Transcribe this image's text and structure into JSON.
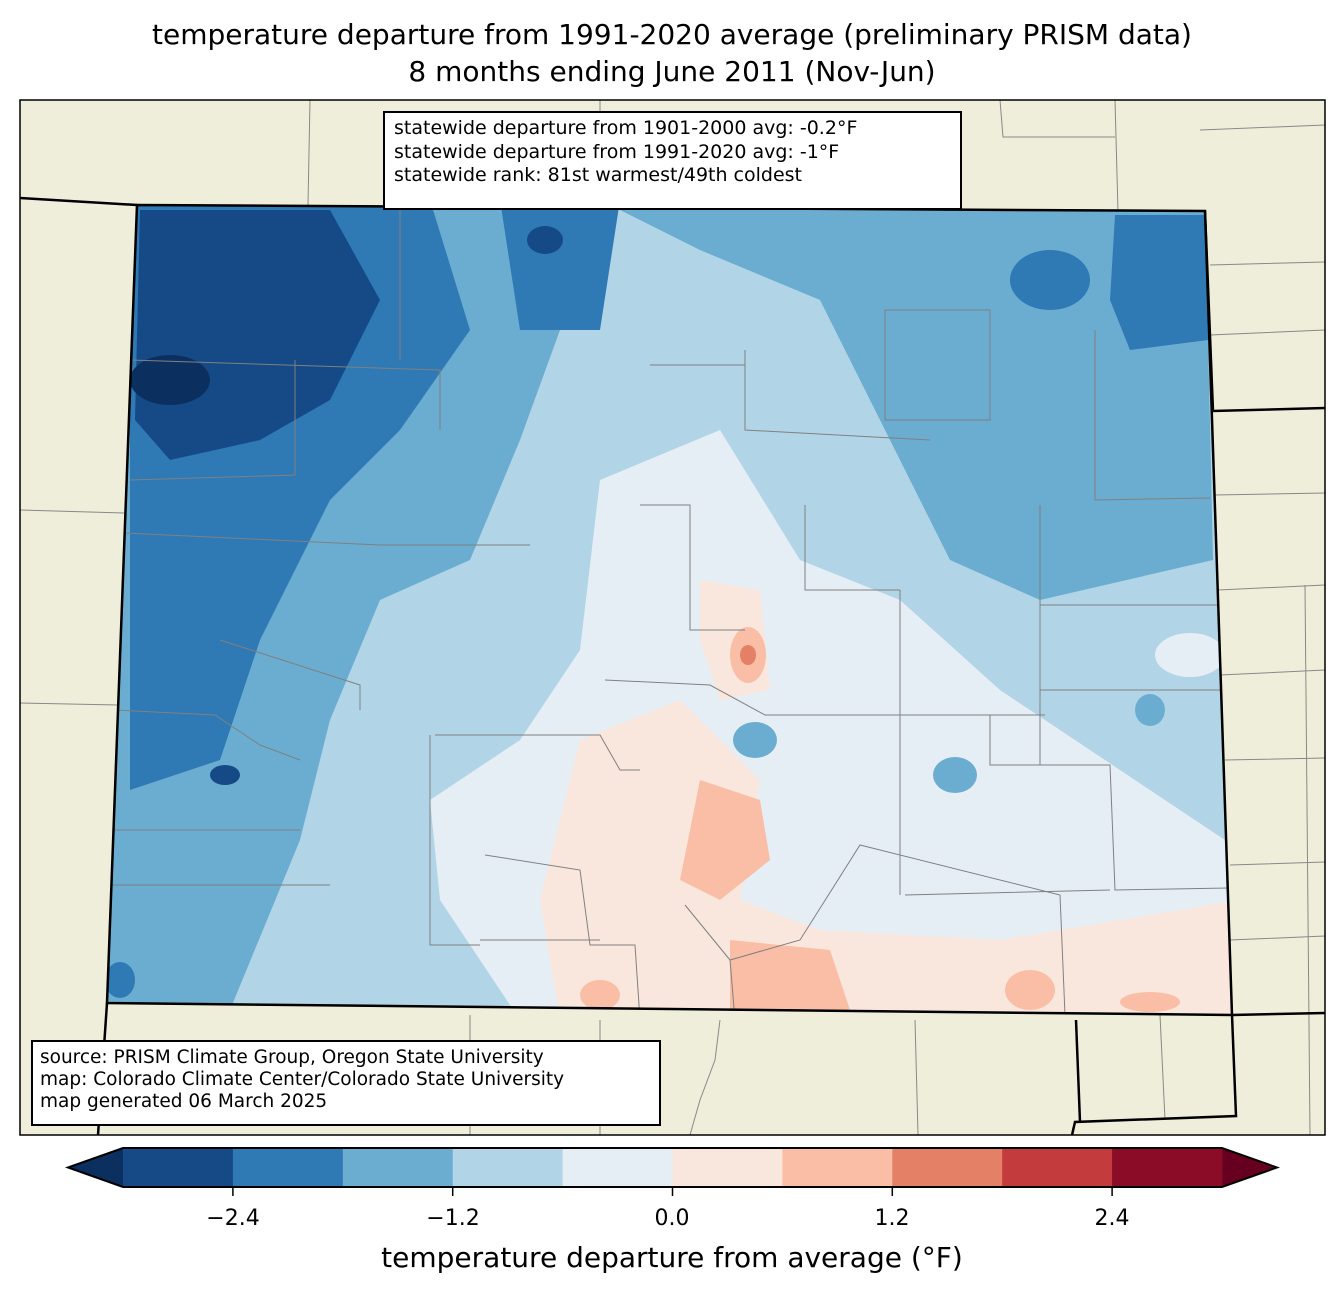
{
  "title": {
    "line1": "temperature departure from 1991-2020 average (preliminary PRISM data)",
    "line2": "8 months ending June 2011 (Nov-Jun)"
  },
  "stats": {
    "line1": "statewide departure from 1901-2000 avg: -0.2°F",
    "line2": "statewide departure from 1991-2020 avg: -1°F",
    "line3": "statewide rank: 81st warmest/49th coldest"
  },
  "source": {
    "line1": "source: PRISM Climate Group, Oregon State University",
    "line2": "map: Colorado Climate Center/Colorado State University",
    "line3": "map generated 06 March 2025"
  },
  "colorbar": {
    "label": "temperature departure from average (°F)",
    "bounds": [
      -3.0,
      -2.4,
      -1.8,
      -1.2,
      -0.6,
      0.0,
      0.6,
      1.2,
      1.8,
      2.4,
      3.0
    ],
    "colors": [
      "#154a87",
      "#2f79b5",
      "#6aadd1",
      "#b1d4e7",
      "#e6eef5",
      "#f9e7dd",
      "#f9bea5",
      "#e48066",
      "#c33b3c",
      "#8a0c26"
    ],
    "extend_low_color": "#0b3060",
    "extend_high_color": "#670020",
    "ticks": [
      "−2.4",
      "−1.2",
      "0.0",
      "1.2",
      "2.4"
    ]
  },
  "map_colors": {
    "land": "#efeedb",
    "county_lines": "#808080"
  }
}
